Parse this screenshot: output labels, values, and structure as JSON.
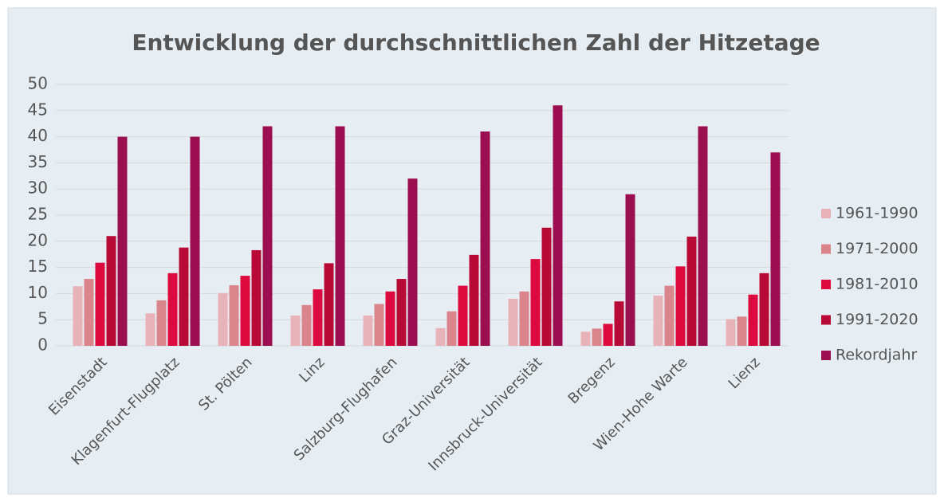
{
  "chart_data": {
    "type": "bar",
    "title": "Entwicklung der durchschnittlichen Zahl der Hitzetage",
    "categories": [
      "Eisenstadt",
      "Klagenfurt-Flugplatz",
      "St. Pölten",
      "Linz",
      "Salzburg-Flughafen",
      "Graz-Universität",
      "Innsbruck-Universität",
      "Bregenz",
      "Wien-Hohe Warte",
      "Lienz"
    ],
    "series": [
      {
        "name": "1961-1990",
        "color": "#e8b3b8",
        "values": [
          11.4,
          6.2,
          10.1,
          5.8,
          5.8,
          3.4,
          9.0,
          2.7,
          9.6,
          5.1
        ]
      },
      {
        "name": "1971-2000",
        "color": "#da858c",
        "values": [
          12.8,
          8.7,
          11.6,
          7.8,
          8.0,
          6.6,
          10.4,
          3.3,
          11.5,
          5.6
        ]
      },
      {
        "name": "1981-2010",
        "color": "#dc0a3e",
        "values": [
          15.9,
          13.9,
          13.4,
          10.8,
          10.4,
          11.5,
          16.6,
          4.2,
          15.2,
          9.8
        ]
      },
      {
        "name": "1991-2020",
        "color": "#b80a36",
        "values": [
          21.0,
          18.8,
          18.3,
          15.8,
          12.8,
          17.4,
          22.6,
          8.5,
          20.9,
          13.9
        ]
      },
      {
        "name": "Rekordjahr",
        "color": "#9b0f50",
        "values": [
          40,
          40,
          42,
          42,
          32,
          41,
          46,
          29,
          42,
          37
        ]
      }
    ],
    "ylim": [
      0,
      50
    ],
    "yticks": [
      0,
      5,
      10,
      15,
      20,
      25,
      30,
      35,
      40,
      45,
      50
    ],
    "grid": true,
    "legend": "right"
  }
}
